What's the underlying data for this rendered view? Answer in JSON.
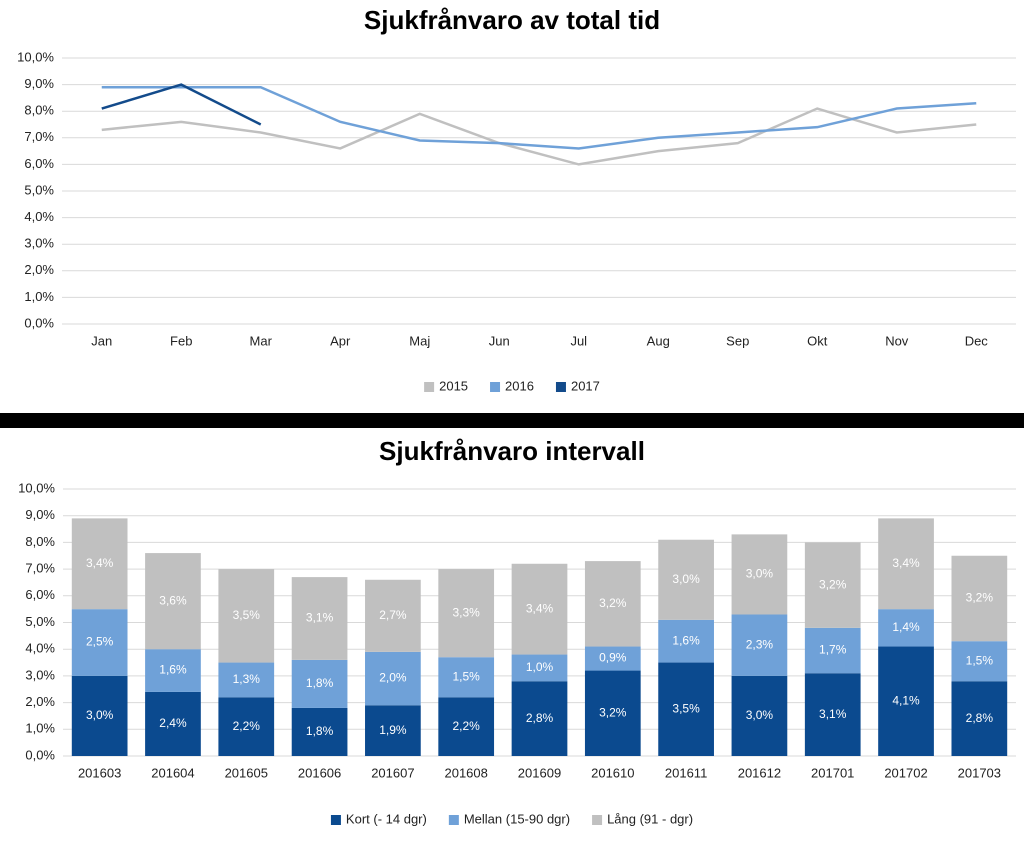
{
  "chart_data": [
    {
      "type": "line",
      "title": "Sjukfrånvaro av total tid",
      "categories": [
        "Jan",
        "Feb",
        "Mar",
        "Apr",
        "Maj",
        "Jun",
        "Jul",
        "Aug",
        "Sep",
        "Okt",
        "Nov",
        "Dec"
      ],
      "series": [
        {
          "name": "2015",
          "color": "#c0c0c0",
          "values": [
            7.3,
            7.6,
            7.2,
            6.6,
            7.9,
            6.8,
            6.0,
            6.5,
            6.8,
            8.1,
            7.2,
            7.5
          ]
        },
        {
          "name": "2016",
          "color": "#6fa1d8",
          "values": [
            8.9,
            8.9,
            8.9,
            7.6,
            6.9,
            6.8,
            6.6,
            7.0,
            7.2,
            7.4,
            8.1,
            8.3
          ]
        },
        {
          "name": "2017",
          "color": "#134b8b",
          "values": [
            8.1,
            9.0,
            7.5,
            null,
            null,
            null,
            null,
            null,
            null,
            null,
            null,
            null
          ]
        }
      ],
      "ylim": [
        0,
        10
      ],
      "yticks": [
        {
          "value": 0,
          "label": "0,0%"
        },
        {
          "value": 1,
          "label": "1,0%"
        },
        {
          "value": 2,
          "label": "2,0%"
        },
        {
          "value": 3,
          "label": "3,0%"
        },
        {
          "value": 4,
          "label": "4,0%"
        },
        {
          "value": 5,
          "label": "5,0%"
        },
        {
          "value": 6,
          "label": "6,0%"
        },
        {
          "value": 7,
          "label": "7,0%"
        },
        {
          "value": 8,
          "label": "8,0%"
        },
        {
          "value": 9,
          "label": "9,0%"
        },
        {
          "value": 10,
          "label": "10,0%"
        }
      ],
      "grid": true
    },
    {
      "type": "stacked_bar",
      "title": "Sjukfrånvaro intervall",
      "categories": [
        "201603",
        "201604",
        "201605",
        "201606",
        "201607",
        "201608",
        "201609",
        "201610",
        "201611",
        "201612",
        "201701",
        "201702",
        "201703"
      ],
      "series": [
        {
          "name": "Kort (- 14 dgr)",
          "color": "#0b4a8f",
          "values": [
            3.0,
            2.4,
            2.2,
            1.8,
            1.9,
            2.2,
            2.8,
            3.2,
            3.5,
            3.0,
            3.1,
            4.1,
            2.8
          ],
          "value_labels": [
            "3,0%",
            "2,4%",
            "2,2%",
            "1,8%",
            "1,9%",
            "2,2%",
            "2,8%",
            "3,2%",
            "3,5%",
            "3,0%",
            "3,1%",
            "4,1%",
            "2,8%"
          ]
        },
        {
          "name": "Mellan (15-90 dgr)",
          "color": "#6fa1d8",
          "values": [
            2.5,
            1.6,
            1.3,
            1.8,
            2.0,
            1.5,
            1.0,
            0.9,
            1.6,
            2.3,
            1.7,
            1.4,
            1.5
          ],
          "value_labels": [
            "2,5%",
            "1,6%",
            "1,3%",
            "1,8%",
            "2,0%",
            "1,5%",
            "1,0%",
            "0,9%",
            "1,6%",
            "2,3%",
            "1,7%",
            "1,4%",
            "1,5%"
          ]
        },
        {
          "name": "Lång (91 - dgr)",
          "color": "#c0c0c0",
          "values": [
            3.4,
            3.6,
            3.5,
            3.1,
            2.7,
            3.3,
            3.4,
            3.2,
            3.0,
            3.0,
            3.2,
            3.4,
            3.2
          ],
          "value_labels": [
            "3,4%",
            "3,6%",
            "3,5%",
            "3,1%",
            "2,7%",
            "3,3%",
            "3,4%",
            "3,2%",
            "3,0%",
            "3,0%",
            "3,2%",
            "3,4%",
            "3,2%"
          ]
        }
      ],
      "ylim": [
        0,
        10
      ],
      "yticks": [
        {
          "value": 0,
          "label": "0,0%"
        },
        {
          "value": 1,
          "label": "1,0%"
        },
        {
          "value": 2,
          "label": "2,0%"
        },
        {
          "value": 3,
          "label": "3,0%"
        },
        {
          "value": 4,
          "label": "4,0%"
        },
        {
          "value": 5,
          "label": "5,0%"
        },
        {
          "value": 6,
          "label": "6,0%"
        },
        {
          "value": 7,
          "label": "7,0%"
        },
        {
          "value": 8,
          "label": "8,0%"
        },
        {
          "value": 9,
          "label": "9,0%"
        },
        {
          "value": 10,
          "label": "10,0%"
        }
      ],
      "grid": true
    }
  ]
}
